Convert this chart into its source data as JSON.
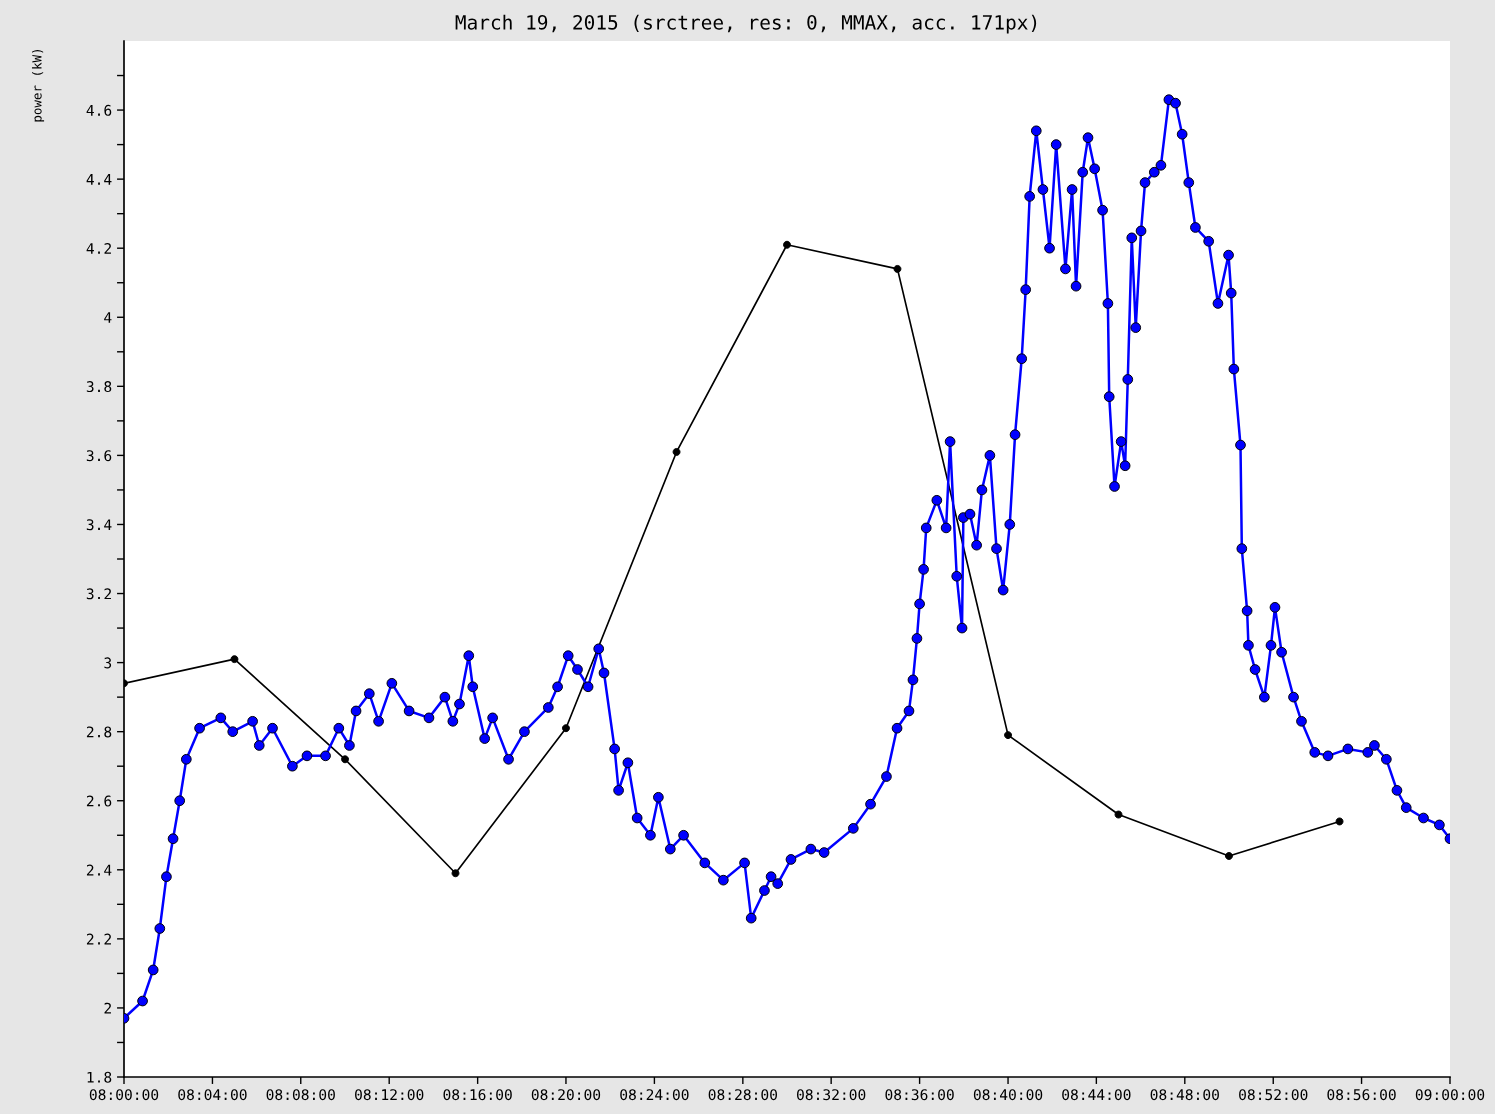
{
  "chart_data": {
    "type": "line",
    "title": "March 19, 2015 (srctree, res: 0, MMAX, acc. 171px)",
    "ylabel": "power (kW)",
    "xlim": [
      8,
      9
    ],
    "ylim": [
      1.8,
      4.8
    ],
    "xticks": [
      {
        "value": 8.0,
        "label": "08:00:00"
      },
      {
        "value": 8.0667,
        "label": "08:04:00"
      },
      {
        "value": 8.1333,
        "label": "08:08:00"
      },
      {
        "value": 8.2,
        "label": "08:12:00"
      },
      {
        "value": 8.2667,
        "label": "08:16:00"
      },
      {
        "value": 8.3333,
        "label": "08:20:00"
      },
      {
        "value": 8.4,
        "label": "08:24:00"
      },
      {
        "value": 8.4667,
        "label": "08:28:00"
      },
      {
        "value": 8.5333,
        "label": "08:32:00"
      },
      {
        "value": 8.6,
        "label": "08:36:00"
      },
      {
        "value": 8.6667,
        "label": "08:40:00"
      },
      {
        "value": 8.7333,
        "label": "08:44:00"
      },
      {
        "value": 8.8,
        "label": "08:48:00"
      },
      {
        "value": 8.8667,
        "label": "08:52:00"
      },
      {
        "value": 8.9333,
        "label": "08:56:00"
      },
      {
        "value": 9.0,
        "label": "09:00:00"
      }
    ],
    "yticks": [
      1.8,
      {
        "value": 1.9,
        "label": null
      },
      2,
      {
        "value": 2.1,
        "label": null
      },
      2.2,
      {
        "value": 2.3,
        "label": null
      },
      2.4,
      {
        "value": 2.5,
        "label": null
      },
      2.6,
      {
        "value": 2.7,
        "label": null
      },
      2.8,
      {
        "value": 2.9,
        "label": null
      },
      3,
      {
        "value": 3.1,
        "label": null
      },
      3.2,
      {
        "value": 3.3,
        "label": null
      },
      3.4,
      {
        "value": 3.5,
        "label": null
      },
      3.6,
      {
        "value": 3.7,
        "label": null
      },
      3.8,
      {
        "value": 3.9,
        "label": null
      },
      4,
      {
        "value": 4.1,
        "label": null
      },
      4.2,
      {
        "value": 4.3,
        "label": null
      },
      4.4,
      {
        "value": 4.5,
        "label": null
      },
      4.6,
      {
        "value": 4.7,
        "label": null
      }
    ],
    "grid": false,
    "marker": "circle",
    "line_style": "solid",
    "series": [
      {
        "color": "#000000",
        "x": [
          8.0,
          8.0833,
          8.1667,
          8.25,
          8.3333,
          8.4167,
          8.5,
          8.5833,
          8.6667,
          8.75,
          8.8333,
          8.9167
        ],
        "values": [
          2.94,
          3.01,
          2.72,
          2.39,
          2.81,
          3.61,
          4.21,
          4.14,
          2.79,
          2.56,
          2.44,
          2.54
        ]
      },
      {
        "color": "#0000ff",
        "x": [
          8.0,
          8.014,
          8.022,
          8.027,
          8.032,
          8.037,
          8.042,
          8.047,
          8.057,
          8.073,
          8.082,
          8.097,
          8.102,
          8.112,
          8.127,
          8.138,
          8.152,
          8.162,
          8.17,
          8.175,
          8.185,
          8.192,
          8.202,
          8.215,
          8.23,
          8.242,
          8.248,
          8.253,
          8.26,
          8.263,
          8.272,
          8.278,
          8.29,
          8.302,
          8.32,
          8.327,
          8.335,
          8.342,
          8.35,
          8.358,
          8.362,
          8.37,
          8.373,
          8.38,
          8.387,
          8.397,
          8.403,
          8.412,
          8.422,
          8.438,
          8.452,
          8.468,
          8.473,
          8.483,
          8.488,
          8.493,
          8.503,
          8.518,
          8.528,
          8.55,
          8.563,
          8.575,
          8.583,
          8.592,
          8.595,
          8.598,
          8.6,
          8.603,
          8.605,
          8.613,
          8.62,
          8.623,
          8.628,
          8.632,
          8.633,
          8.638,
          8.643,
          8.647,
          8.653,
          8.658,
          8.663,
          8.668,
          8.672,
          8.677,
          8.68,
          8.683,
          8.688,
          8.693,
          8.698,
          8.703,
          8.71,
          8.715,
          8.718,
          8.723,
          8.727,
          8.732,
          8.738,
          8.742,
          8.743,
          8.747,
          8.752,
          8.755,
          8.757,
          8.76,
          8.763,
          8.767,
          8.77,
          8.777,
          8.782,
          8.788,
          8.793,
          8.798,
          8.803,
          8.808,
          8.818,
          8.825,
          8.833,
          8.835,
          8.837,
          8.842,
          8.843,
          8.847,
          8.848,
          8.853,
          8.86,
          8.865,
          8.868,
          8.873,
          8.882,
          8.888,
          8.898,
          8.908,
          8.923,
          8.938,
          8.943,
          8.952,
          8.96,
          8.967,
          8.98,
          8.992,
          9.0
        ],
        "values": [
          1.97,
          2.02,
          2.11,
          2.23,
          2.38,
          2.49,
          2.6,
          2.72,
          2.81,
          2.84,
          2.8,
          2.83,
          2.76,
          2.81,
          2.7,
          2.73,
          2.73,
          2.81,
          2.76,
          2.86,
          2.91,
          2.83,
          2.94,
          2.86,
          2.84,
          2.9,
          2.83,
          2.88,
          3.02,
          2.93,
          2.78,
          2.84,
          2.72,
          2.8,
          2.87,
          2.93,
          3.02,
          2.98,
          2.93,
          3.04,
          2.97,
          2.75,
          2.63,
          2.71,
          2.55,
          2.5,
          2.61,
          2.46,
          2.5,
          2.42,
          2.37,
          2.42,
          2.26,
          2.34,
          2.38,
          2.36,
          2.43,
          2.46,
          2.45,
          2.52,
          2.59,
          2.67,
          2.81,
          2.86,
          2.95,
          3.07,
          3.17,
          3.27,
          3.39,
          3.47,
          3.39,
          3.64,
          3.25,
          3.1,
          3.42,
          3.43,
          3.34,
          3.5,
          3.6,
          3.33,
          3.21,
          3.4,
          3.66,
          3.88,
          4.08,
          4.35,
          4.54,
          4.37,
          4.2,
          4.5,
          4.14,
          4.37,
          4.09,
          4.42,
          4.52,
          4.43,
          4.31,
          4.04,
          3.77,
          3.51,
          3.64,
          3.57,
          3.82,
          4.23,
          3.97,
          4.25,
          4.39,
          4.42,
          4.44,
          4.63,
          4.62,
          4.53,
          4.39,
          4.26,
          4.22,
          4.04,
          4.18,
          4.07,
          3.85,
          3.63,
          3.33,
          3.15,
          3.05,
          2.98,
          2.9,
          3.05,
          3.16,
          3.03,
          2.9,
          2.83,
          2.74,
          2.73,
          2.75,
          2.74,
          2.76,
          2.72,
          2.63,
          2.58,
          2.55,
          2.53,
          2.49
        ]
      }
    ]
  }
}
